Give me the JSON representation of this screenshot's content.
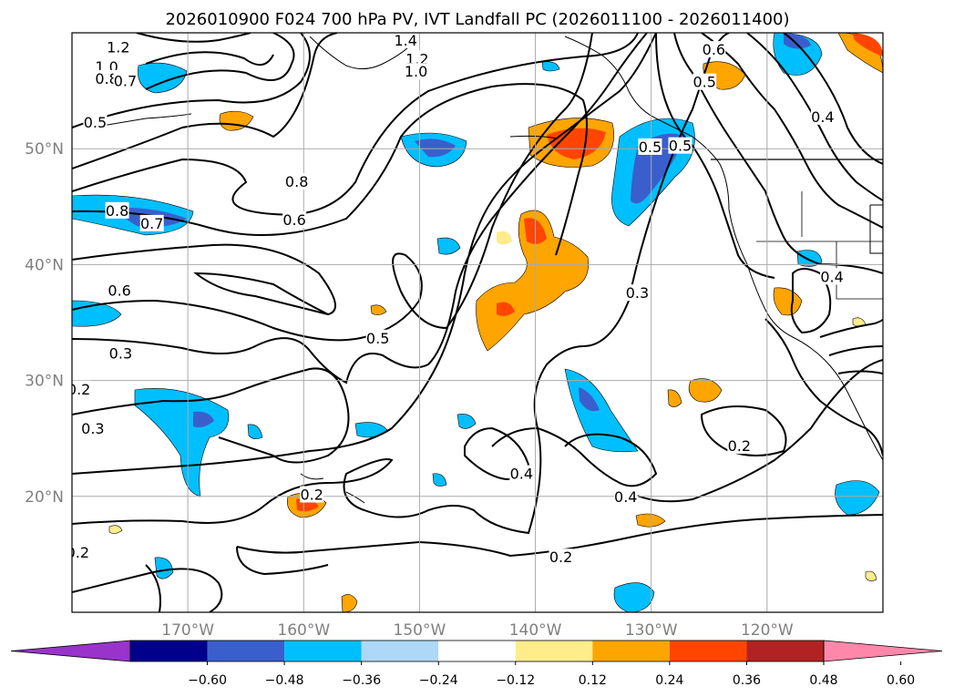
{
  "title": "2026010900 F024 700 hPa PV, IVT Landfall PC (2026011100 - 2026011400)",
  "map": {
    "lon_range": [
      -180,
      -110
    ],
    "lat_range": [
      10,
      60
    ],
    "xticks": [
      {
        "lon": -170,
        "label": "170°W"
      },
      {
        "lon": -160,
        "label": "160°W"
      },
      {
        "lon": -150,
        "label": "150°W"
      },
      {
        "lon": -140,
        "label": "140°W"
      },
      {
        "lon": -130,
        "label": "130°W"
      },
      {
        "lon": -120,
        "label": "120°W"
      }
    ],
    "yticks": [
      {
        "lat": 20,
        "label": "20°N"
      },
      {
        "lat": 30,
        "label": "30°N"
      },
      {
        "lat": 40,
        "label": "40°N"
      },
      {
        "lat": 50,
        "label": "50°N"
      }
    ],
    "grid": true
  },
  "colorbar": {
    "colors": [
      "#9933cc",
      "#00008b",
      "#3a5fcd",
      "#00bfff",
      "#add8f7",
      "#ffffff",
      "#ffec8b",
      "#ffa500",
      "#ff4500",
      "#b22222",
      "#ff88aa"
    ],
    "tick_labels": [
      "−0.60",
      "−0.48",
      "−0.36",
      "−0.24",
      "−0.12",
      "0.12",
      "0.24",
      "0.36",
      "0.48",
      "0.60"
    ]
  },
  "contour_labels": [
    {
      "text": "1.2",
      "lon": -176,
      "lat": 58.7
    },
    {
      "text": "1.0",
      "lon": -177,
      "lat": 57.0
    },
    {
      "text": "0.8",
      "lon": -177,
      "lat": 56.0
    },
    {
      "text": "0.7",
      "lon": -175.4,
      "lat": 55.8
    },
    {
      "text": "0.5",
      "lon": -178,
      "lat": 52.2
    },
    {
      "text": "1.4",
      "lon": -151.2,
      "lat": 59.3
    },
    {
      "text": "1.2",
      "lon": -150.2,
      "lat": 57.7
    },
    {
      "text": "1.0",
      "lon": -150.3,
      "lat": 56.6
    },
    {
      "text": "0.6",
      "lon": -124.6,
      "lat": 58.5
    },
    {
      "text": "0.5",
      "lon": -125.4,
      "lat": 55.7
    },
    {
      "text": "0.4",
      "lon": -115.2,
      "lat": 52.7
    },
    {
      "text": "0.5",
      "lon": -130.1,
      "lat": 50.1
    },
    {
      "text": "0.5",
      "lon": -127.5,
      "lat": 50.2
    },
    {
      "text": "0.8",
      "lon": -160.6,
      "lat": 47.1
    },
    {
      "text": "0.6",
      "lon": -160.8,
      "lat": 43.8
    },
    {
      "text": "0.8",
      "lon": -176.1,
      "lat": 44.6
    },
    {
      "text": "0.7",
      "lon": -173.1,
      "lat": 43.5
    },
    {
      "text": "0.3",
      "lon": -131.2,
      "lat": 37.5
    },
    {
      "text": "0.4",
      "lon": -114.4,
      "lat": 38.9
    },
    {
      "text": "0.6",
      "lon": -175.9,
      "lat": 37.7
    },
    {
      "text": "0.5",
      "lon": -153.6,
      "lat": 33.6
    },
    {
      "text": "0.3",
      "lon": -175.8,
      "lat": 32.3
    },
    {
      "text": "0.2",
      "lon": -179.4,
      "lat": 29.2
    },
    {
      "text": "0.3",
      "lon": -178.2,
      "lat": 25.8
    },
    {
      "text": "0.4",
      "lon": -141.2,
      "lat": 21.9
    },
    {
      "text": "0.4",
      "lon": -132.2,
      "lat": 19.9
    },
    {
      "text": "0.2",
      "lon": -122.4,
      "lat": 24.3
    },
    {
      "text": "0.2",
      "lon": -137.8,
      "lat": 14.7
    },
    {
      "text": "0.2",
      "lon": -179.5,
      "lat": 15.1
    },
    {
      "text": "0.2",
      "lon": -159.3,
      "lat": 20.1
    }
  ]
}
